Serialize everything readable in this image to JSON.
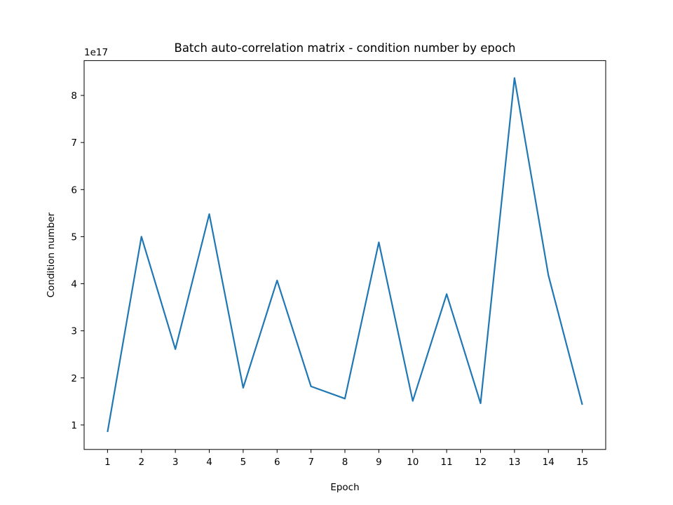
{
  "chart_data": {
    "type": "line",
    "title": "Batch auto-correlation matrix - condition number by epoch",
    "xlabel": "Epoch",
    "ylabel": "Condition number",
    "y_scale_label": "1e17",
    "x": [
      1,
      2,
      3,
      4,
      5,
      6,
      7,
      8,
      9,
      10,
      11,
      12,
      13,
      14,
      15
    ],
    "series": [
      {
        "name": "",
        "color": "#1f77b4",
        "values": [
          0.85,
          5.0,
          2.61,
          5.48,
          1.79,
          4.07,
          1.82,
          1.56,
          4.88,
          1.51,
          3.78,
          1.46,
          8.37,
          4.18,
          1.43
        ]
      }
    ],
    "x_ticks": [
      "1",
      "2",
      "3",
      "4",
      "5",
      "6",
      "7",
      "8",
      "9",
      "10",
      "11",
      "12",
      "13",
      "14",
      "15"
    ],
    "y_ticks": [
      "1",
      "2",
      "3",
      "4",
      "5",
      "6",
      "7",
      "8"
    ],
    "xlim": [
      0.31,
      15.69
    ],
    "ylim": [
      0.48,
      8.74
    ],
    "grid": false
  }
}
